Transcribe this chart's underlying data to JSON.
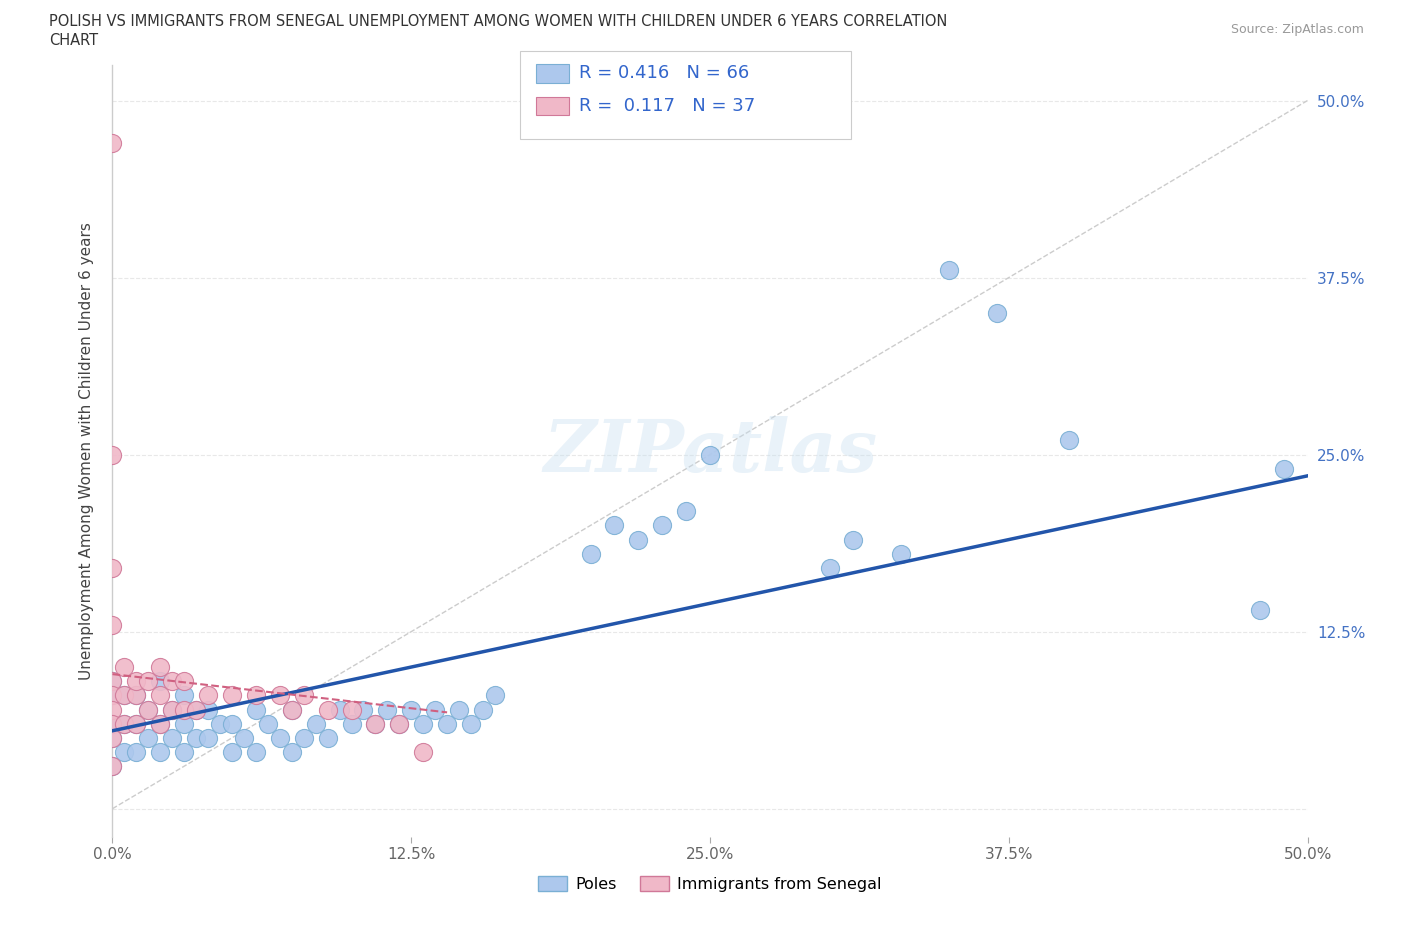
{
  "title_line1": "POLISH VS IMMIGRANTS FROM SENEGAL UNEMPLOYMENT AMONG WOMEN WITH CHILDREN UNDER 6 YEARS CORRELATION",
  "title_line2": "CHART",
  "source_text": "Source: ZipAtlas.com",
  "ylabel": "Unemployment Among Women with Children Under 6 years",
  "poles_color": "#adc8ed",
  "poles_edge_color": "#7aafd4",
  "senegal_color": "#f0b8c8",
  "senegal_edge_color": "#d07898",
  "trend_poles_color": "#2255aa",
  "trend_senegal_color": "#d06080",
  "R_poles": 0.416,
  "N_poles": 66,
  "R_senegal": 0.117,
  "N_senegal": 37,
  "poles_x": [
    0.0,
    0.0,
    0.0,
    0.0,
    0.0,
    0.005,
    0.005,
    0.005,
    0.01,
    0.01,
    0.01,
    0.015,
    0.015,
    0.02,
    0.02,
    0.02,
    0.025,
    0.025,
    0.03,
    0.03,
    0.03,
    0.035,
    0.035,
    0.04,
    0.04,
    0.045,
    0.05,
    0.05,
    0.055,
    0.06,
    0.06,
    0.065,
    0.07,
    0.075,
    0.075,
    0.08,
    0.085,
    0.09,
    0.095,
    0.1,
    0.105,
    0.11,
    0.115,
    0.12,
    0.125,
    0.13,
    0.135,
    0.14,
    0.145,
    0.15,
    0.155,
    0.16,
    0.2,
    0.21,
    0.22,
    0.23,
    0.24,
    0.25,
    0.3,
    0.31,
    0.33,
    0.35,
    0.37,
    0.4,
    0.48,
    0.49
  ],
  "poles_y": [
    0.03,
    0.05,
    0.06,
    0.08,
    0.09,
    0.04,
    0.06,
    0.08,
    0.04,
    0.06,
    0.08,
    0.05,
    0.07,
    0.04,
    0.06,
    0.09,
    0.05,
    0.07,
    0.04,
    0.06,
    0.08,
    0.05,
    0.07,
    0.05,
    0.07,
    0.06,
    0.04,
    0.06,
    0.05,
    0.04,
    0.07,
    0.06,
    0.05,
    0.04,
    0.07,
    0.05,
    0.06,
    0.05,
    0.07,
    0.06,
    0.07,
    0.06,
    0.07,
    0.06,
    0.07,
    0.06,
    0.07,
    0.06,
    0.07,
    0.06,
    0.07,
    0.08,
    0.18,
    0.2,
    0.19,
    0.2,
    0.21,
    0.25,
    0.17,
    0.19,
    0.18,
    0.38,
    0.35,
    0.26,
    0.14,
    0.24
  ],
  "senegal_x": [
    0.0,
    0.0,
    0.0,
    0.0,
    0.0,
    0.0,
    0.0,
    0.0,
    0.0,
    0.0,
    0.005,
    0.005,
    0.005,
    0.01,
    0.01,
    0.01,
    0.015,
    0.015,
    0.02,
    0.02,
    0.02,
    0.025,
    0.025,
    0.03,
    0.03,
    0.035,
    0.04,
    0.05,
    0.06,
    0.07,
    0.075,
    0.08,
    0.09,
    0.1,
    0.11,
    0.12,
    0.13
  ],
  "senegal_y": [
    0.47,
    0.25,
    0.17,
    0.13,
    0.09,
    0.08,
    0.07,
    0.06,
    0.05,
    0.03,
    0.06,
    0.08,
    0.1,
    0.06,
    0.08,
    0.09,
    0.07,
    0.09,
    0.06,
    0.08,
    0.1,
    0.07,
    0.09,
    0.07,
    0.09,
    0.07,
    0.08,
    0.08,
    0.08,
    0.08,
    0.07,
    0.08,
    0.07,
    0.07,
    0.06,
    0.06,
    0.04
  ],
  "xlim": [
    0.0,
    0.5
  ],
  "ylim": [
    -0.02,
    0.525
  ],
  "xticks": [
    0.0,
    0.125,
    0.25,
    0.375,
    0.5
  ],
  "xticklabels": [
    "0.0%",
    "12.5%",
    "25.0%",
    "37.5%",
    "50.0%"
  ],
  "yticks": [
    0.0,
    0.125,
    0.25,
    0.375,
    0.5
  ],
  "yticklabels_right": [
    "",
    "12.5%",
    "25.0%",
    "37.5%",
    "50.0%"
  ],
  "background_color": "#ffffff",
  "watermark": "ZIPatlas",
  "legend_poles_label": "Poles",
  "legend_senegal_label": "Immigrants from Senegal",
  "grid_color": "#e8e8e8",
  "trend_poles_start_x": 0.0,
  "trend_poles_end_x": 0.5,
  "trend_poles_start_y": 0.055,
  "trend_poles_end_y": 0.235,
  "trend_senegal_start_x": 0.0,
  "trend_senegal_end_x": 0.14,
  "trend_senegal_start_y": 0.095,
  "trend_senegal_end_y": 0.068
}
